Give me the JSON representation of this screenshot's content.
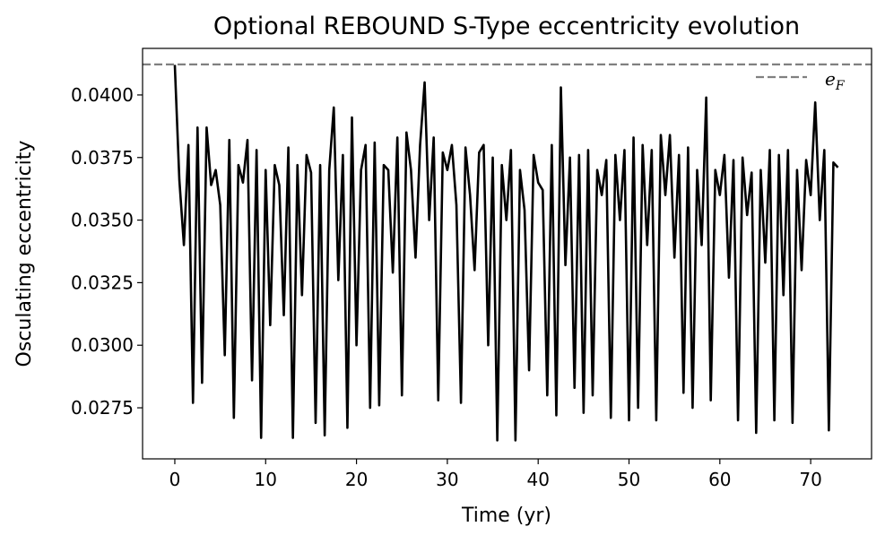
{
  "chart_data": {
    "type": "line",
    "title": "Optional REBOUND S-Type eccentricity evolution",
    "x_label": "Time (yr)",
    "y_label": "Osculating eccentricity",
    "x": [
      0,
      0.5,
      1,
      1.5,
      2,
      2.5,
      3,
      3.5,
      4,
      4.5,
      5,
      5.5,
      6,
      6.5,
      7,
      7.5,
      8,
      8.5,
      9,
      9.5,
      10,
      10.5,
      11,
      11.5,
      12,
      12.5,
      13,
      13.5,
      14,
      14.5,
      15,
      15.5,
      16,
      16.5,
      17,
      17.5,
      18,
      18.5,
      19,
      19.5,
      20,
      20.5,
      21,
      21.5,
      22,
      22.5,
      23,
      23.5,
      24,
      24.5,
      25,
      25.5,
      26,
      26.5,
      27,
      27.5,
      28,
      28.5,
      29,
      29.5,
      30,
      30.5,
      31,
      31.5,
      32,
      32.5,
      33,
      33.5,
      34,
      34.5,
      35,
      35.5,
      36,
      36.5,
      37,
      37.5,
      38,
      38.5,
      39,
      39.5,
      40,
      40.5,
      41,
      41.5,
      42,
      42.5,
      43,
      43.5,
      44,
      44.5,
      45,
      45.5,
      46,
      46.5,
      47,
      47.5,
      48,
      48.5,
      49,
      49.5,
      50,
      50.5,
      51,
      51.5,
      52,
      52.5,
      53,
      53.5,
      54,
      54.5,
      55,
      55.5,
      56,
      56.5,
      57,
      57.5,
      58,
      58.5,
      59,
      59.5,
      60,
      60.5,
      61,
      61.5,
      62,
      62.5,
      63,
      63.5,
      64,
      64.5,
      65,
      65.5,
      66,
      66.5,
      67,
      67.5,
      68,
      68.5,
      69,
      69.5,
      70,
      70.5,
      71,
      71.5,
      72,
      72.5,
      73
    ],
    "series": [
      {
        "color": "#000000",
        "values": [
          0.0412,
          0.0366,
          0.034,
          0.038,
          0.0277,
          0.0387,
          0.0285,
          0.0387,
          0.0364,
          0.037,
          0.0356,
          0.0296,
          0.0382,
          0.0271,
          0.0372,
          0.0365,
          0.0382,
          0.0286,
          0.0378,
          0.0263,
          0.037,
          0.0308,
          0.0372,
          0.0364,
          0.0312,
          0.0379,
          0.0263,
          0.0372,
          0.032,
          0.0376,
          0.0369,
          0.0269,
          0.0372,
          0.0264,
          0.037,
          0.0395,
          0.0326,
          0.0376,
          0.0267,
          0.0391,
          0.03,
          0.037,
          0.038,
          0.0275,
          0.0381,
          0.0276,
          0.0372,
          0.037,
          0.0329,
          0.0383,
          0.028,
          0.0385,
          0.037,
          0.0335,
          0.038,
          0.0405,
          0.035,
          0.0383,
          0.0278,
          0.0377,
          0.037,
          0.038,
          0.0356,
          0.0277,
          0.0379,
          0.036,
          0.033,
          0.0377,
          0.038,
          0.03,
          0.0375,
          0.0262,
          0.0372,
          0.035,
          0.0378,
          0.0262,
          0.037,
          0.0354,
          0.029,
          0.0376,
          0.0365,
          0.0362,
          0.028,
          0.038,
          0.0272,
          0.0403,
          0.0332,
          0.0375,
          0.0283,
          0.0376,
          0.0273,
          0.0378,
          0.028,
          0.037,
          0.036,
          0.0374,
          0.0271,
          0.0376,
          0.035,
          0.0378,
          0.027,
          0.0383,
          0.0275,
          0.038,
          0.034,
          0.0378,
          0.027,
          0.0384,
          0.036,
          0.0384,
          0.0335,
          0.0376,
          0.0281,
          0.0379,
          0.0275,
          0.037,
          0.034,
          0.0399,
          0.0278,
          0.037,
          0.036,
          0.0376,
          0.0327,
          0.0374,
          0.027,
          0.0375,
          0.0352,
          0.0369,
          0.0265,
          0.037,
          0.0333,
          0.0378,
          0.027,
          0.0376,
          0.032,
          0.0378,
          0.0269,
          0.037,
          0.033,
          0.0374,
          0.036,
          0.0397,
          0.035,
          0.0378,
          0.0266,
          0.0373,
          0.0371
        ]
      }
    ],
    "reference_line": {
      "value": 0.04122,
      "color": "#808080",
      "name": "e",
      "subscript": "F"
    },
    "xlim": [
      -3.55,
      76.7
    ],
    "ylim": [
      0.02546,
      0.04186
    ],
    "xticks": [
      0,
      10,
      20,
      30,
      40,
      50,
      60,
      70
    ],
    "yticks": [
      0.0275,
      {
        "value": 0.03,
        "label": "0.0300"
      },
      0.0325,
      {
        "value": 0.035,
        "label": "0.0350"
      },
      0.0375,
      {
        "value": 0.04,
        "label": "0.0400"
      }
    ],
    "legend": "upper right"
  }
}
